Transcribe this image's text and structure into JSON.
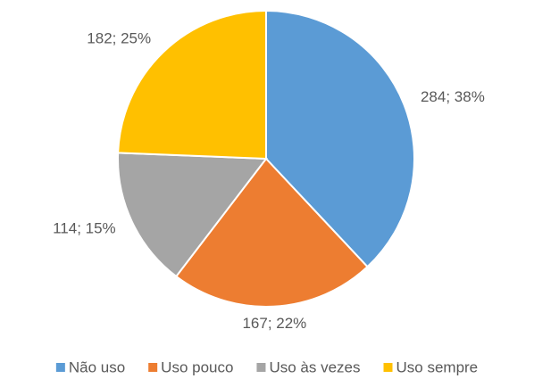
{
  "chart_data": {
    "type": "pie",
    "categories": [
      "Não uso",
      "Uso pouco",
      "Uso às vezes",
      "Uso sempre"
    ],
    "values": [
      284,
      167,
      114,
      182
    ],
    "value_labels": [
      "284; 38%",
      "167; 22%",
      "114; 15%",
      "182; 25%"
    ],
    "colors": [
      "#5b9bd5",
      "#ed7d31",
      "#a5a5a5",
      "#ffc000"
    ],
    "legend": "bottom"
  }
}
